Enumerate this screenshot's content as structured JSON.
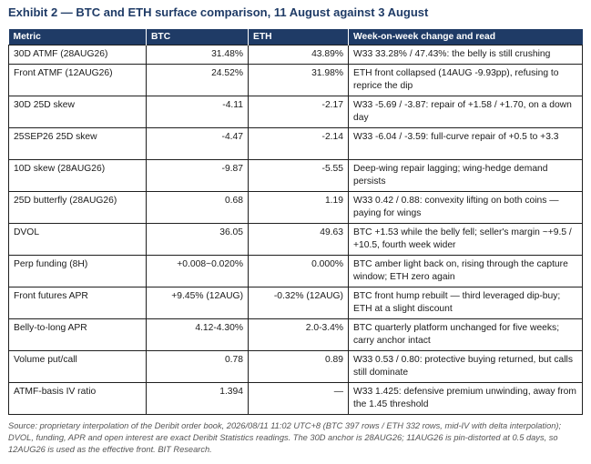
{
  "title": "Exhibit 2 — BTC and ETH surface comparison, 11 August against 3 August",
  "columns": [
    "Metric",
    "BTC",
    "ETH",
    "Week-on-week change and read"
  ],
  "rows": [
    {
      "metric": "30D ATMF (28AUG26)",
      "btc": "31.48%",
      "eth": "43.89%",
      "read": "W33 33.28% / 47.43%: the belly is still crushing"
    },
    {
      "metric": "Front ATMF (12AUG26)",
      "btc": "24.52%",
      "eth": "31.98%",
      "read": "ETH front collapsed (14AUG -9.93pp), refusing to reprice the dip"
    },
    {
      "metric": "30D 25D skew",
      "btc": "-4.11",
      "eth": "-2.17",
      "read": "W33 -5.69 / -3.87: repair of +1.58 / +1.70, on a down day"
    },
    {
      "metric": "25SEP26 25D skew",
      "btc": "-4.47",
      "eth": "-2.14",
      "read": "W33 -6.04 / -3.59: full-curve repair of +0.5 to +3.3"
    },
    {
      "metric": "10D skew (28AUG26)",
      "btc": "-9.87",
      "eth": "-5.55",
      "read": "Deep-wing repair lagging; wing-hedge demand persists"
    },
    {
      "metric": "25D butterfly (28AUG26)",
      "btc": "0.68",
      "eth": "1.19",
      "read": "W33 0.42 / 0.88: convexity lifting on both coins — paying for wings"
    },
    {
      "metric": "DVOL",
      "btc": "36.05",
      "eth": "49.63",
      "read": "BTC +1.53 while the belly fell; seller's margin ~+9.5 / +10.5, fourth week wider"
    },
    {
      "metric": "Perp funding (8H)",
      "btc": "+0.008~0.020%",
      "eth": "0.000%",
      "read": "BTC amber light back on, rising through the capture window; ETH zero again"
    },
    {
      "metric": "Front futures APR",
      "btc": "+9.45% (12AUG)",
      "eth": "-0.32% (12AUG)",
      "read": "BTC front hump rebuilt — third leveraged dip-buy; ETH at a slight discount"
    },
    {
      "metric": "Belly-to-long APR",
      "btc": "4.12-4.30%",
      "eth": "2.0-3.4%",
      "read": "BTC quarterly platform unchanged for five weeks; carry anchor intact"
    },
    {
      "metric": "Volume put/call",
      "btc": "0.78",
      "eth": "0.89",
      "read": "W33 0.53 / 0.80: protective buying returned, but calls still dominate"
    },
    {
      "metric": "ATMF-basis IV ratio",
      "btc": "1.394",
      "eth": "—",
      "read": "W33 1.425: defensive premium unwinding, away from the 1.45 threshold"
    }
  ],
  "footnote": "Source: proprietary interpolation of the Deribit order book, 2026/08/11 11:02 UTC+8 (BTC 397 rows / ETH 332 rows, mid-IV with delta interpolation); DVOL, funding, APR and open interest are exact Deribit Statistics readings. The 30D anchor is 28AUG26; 11AUG26 is pin-distorted at 0.5 days, so 12AUG26 is used as the effective front. BIT Research.",
  "colors": {
    "header_bg": "#1f3b66",
    "title": "#1f3b66",
    "border": "#1f1f1f",
    "footnote": "#555555"
  }
}
